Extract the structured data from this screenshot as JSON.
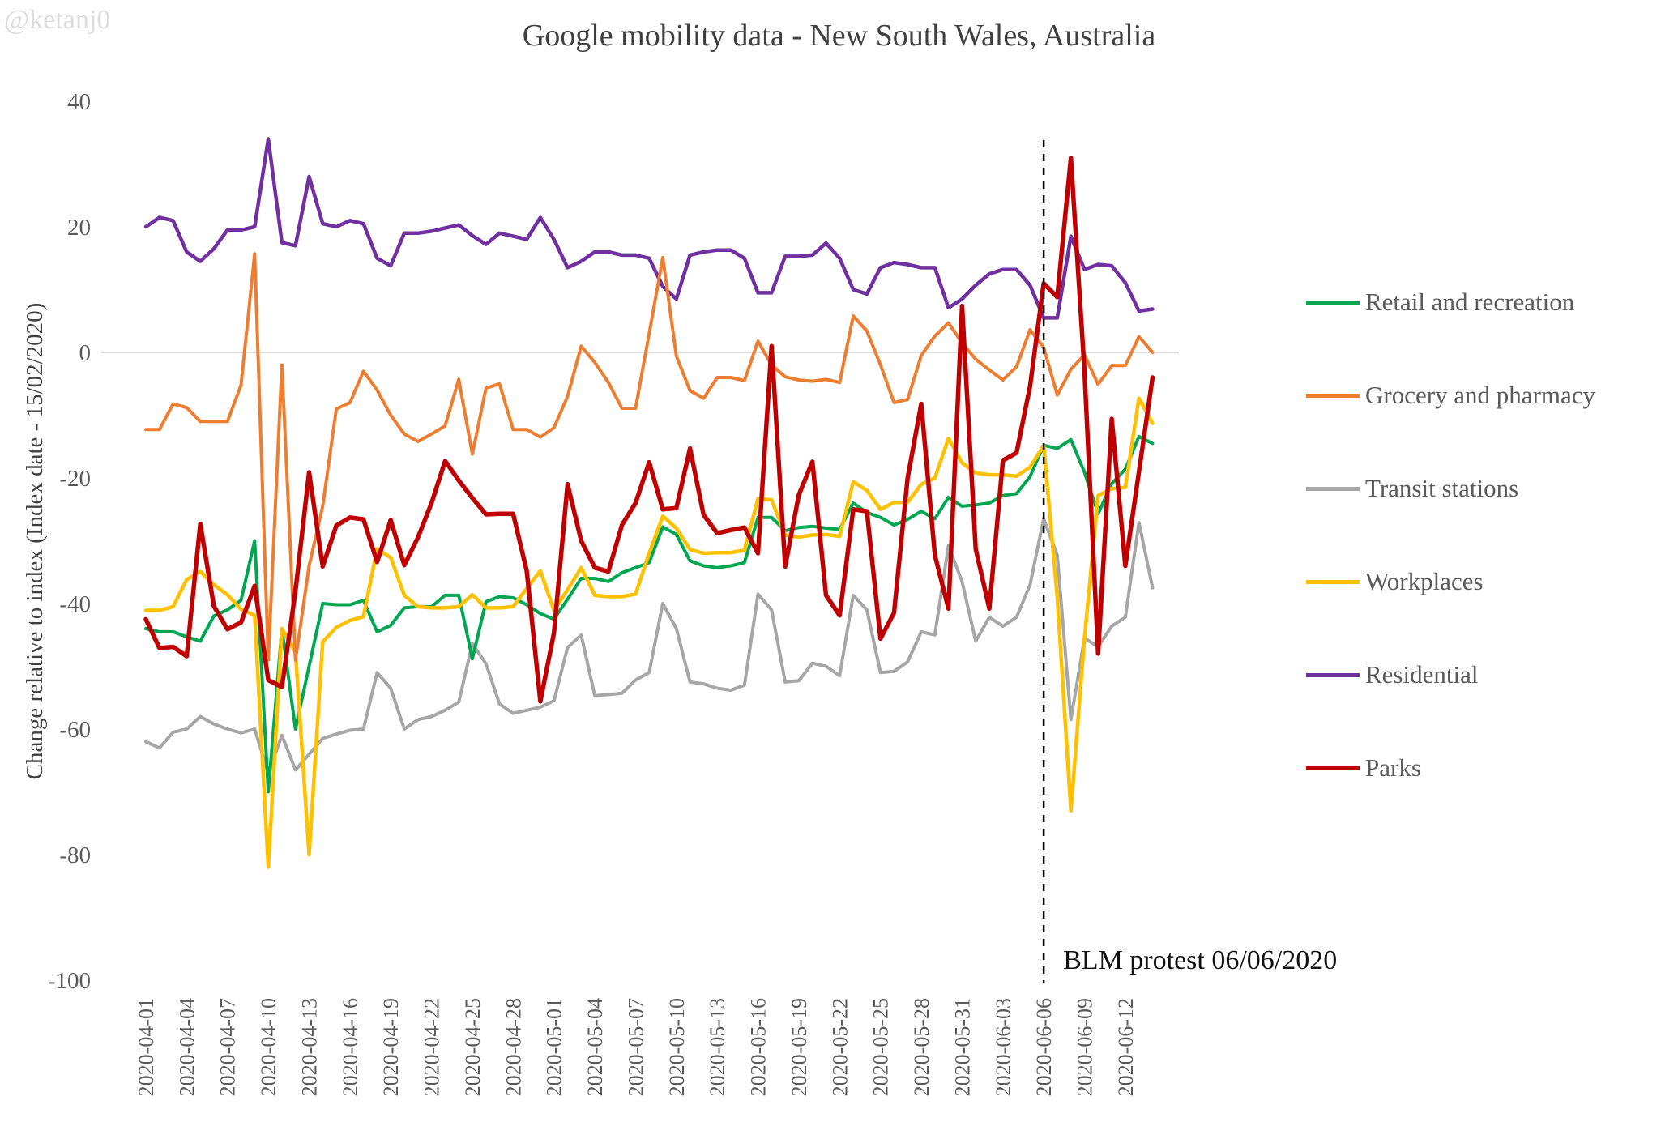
{
  "watermark": "@ketanj0",
  "y_axis": {
    "title": "Change relative to index (Index date - 15/02/2020)"
  },
  "annotation": {
    "text": "BLM protest 06/06/2020",
    "day_index": 66,
    "date": "2020-06-06"
  },
  "chart_data": {
    "type": "line",
    "title": "Google mobility data - New South Wales, Australia",
    "xlabel": "",
    "ylabel": "Change relative to index (Index date - 15/02/2020)",
    "ylim": [
      -100,
      40
    ],
    "y_ticks": [
      40,
      20,
      0,
      -20,
      -40,
      -60,
      -80,
      -100
    ],
    "gridline_color": "#d9d9d9",
    "legend_position": "right",
    "x_tick_every_days": 3,
    "dates": [
      "2020-04-01",
      "2020-04-02",
      "2020-04-03",
      "2020-04-04",
      "2020-04-05",
      "2020-04-06",
      "2020-04-07",
      "2020-04-08",
      "2020-04-09",
      "2020-04-10",
      "2020-04-11",
      "2020-04-12",
      "2020-04-13",
      "2020-04-14",
      "2020-04-15",
      "2020-04-16",
      "2020-04-17",
      "2020-04-18",
      "2020-04-19",
      "2020-04-20",
      "2020-04-21",
      "2020-04-22",
      "2020-04-23",
      "2020-04-24",
      "2020-04-25",
      "2020-04-26",
      "2020-04-27",
      "2020-04-28",
      "2020-04-29",
      "2020-04-30",
      "2020-05-01",
      "2020-05-02",
      "2020-05-03",
      "2020-05-04",
      "2020-05-05",
      "2020-05-06",
      "2020-05-07",
      "2020-05-08",
      "2020-05-09",
      "2020-05-10",
      "2020-05-11",
      "2020-05-12",
      "2020-05-13",
      "2020-05-14",
      "2020-05-15",
      "2020-05-16",
      "2020-05-17",
      "2020-05-18",
      "2020-05-19",
      "2020-05-20",
      "2020-05-21",
      "2020-05-22",
      "2020-05-23",
      "2020-05-24",
      "2020-05-25",
      "2020-05-26",
      "2020-05-27",
      "2020-05-28",
      "2020-05-29",
      "2020-05-30",
      "2020-05-31",
      "2020-06-01",
      "2020-06-02",
      "2020-06-03",
      "2020-06-04",
      "2020-06-05",
      "2020-06-06",
      "2020-06-07",
      "2020-06-08",
      "2020-06-09",
      "2020-06-10",
      "2020-06-11",
      "2020-06-12",
      "2020-06-13",
      "2020-06-14"
    ],
    "draw_order": [
      2,
      0,
      3,
      4,
      1,
      5
    ],
    "series": [
      {
        "name": "Retail and recreation",
        "color": "#00A651",
        "width": 4,
        "values": [
          -44,
          -44.5,
          -44.5,
          -45.3,
          -46,
          -42,
          -41,
          -39.5,
          -30,
          -70,
          -44,
          -60,
          -50,
          -40,
          -40.2,
          -40.2,
          -39.5,
          -44.5,
          -43.5,
          -40.7,
          -40.5,
          -40.5,
          -38.7,
          -38.7,
          -48.8,
          -39.7,
          -38.9,
          -39.1,
          -40.2,
          -41.6,
          -42.5,
          -39.3,
          -36,
          -36,
          -36.5,
          -35.1,
          -34.3,
          -33.5,
          -27.8,
          -29,
          -33.2,
          -34,
          -34.3,
          -34,
          -33.5,
          -26.3,
          -26.3,
          -28.4,
          -27.9,
          -27.7,
          -28,
          -28.2,
          -24,
          -25.5,
          -26.3,
          -27.5,
          -26.6,
          -25.3,
          -26.5,
          -23.1,
          -24.5,
          -24.3,
          -24,
          -22.8,
          -22.5,
          -19.8,
          -14.8,
          -15.3,
          -13.9,
          -19.1,
          -25.7,
          -20.9,
          -18.6,
          -13.4,
          -14.5
        ]
      },
      {
        "name": "Grocery and pharmacy",
        "color": "#ED7D31",
        "width": 4,
        "values": [
          -12.3,
          -12.3,
          -8.2,
          -8.8,
          -11,
          -11,
          -11,
          -5.2,
          15.7,
          -49,
          -2,
          -49,
          -34,
          -24.5,
          -9,
          -8,
          -3,
          -6,
          -10,
          -13,
          -14.2,
          -13,
          -11.7,
          -4.3,
          -16.2,
          -5.7,
          -5,
          -12.3,
          -12.3,
          -13.5,
          -12,
          -7,
          1,
          -1.6,
          -4.8,
          -8.9,
          -8.9,
          3,
          15.1,
          -0.6,
          -6.1,
          -7.3,
          -4,
          -4,
          -4.5,
          1.8,
          -2,
          -3.9,
          -4.4,
          -4.6,
          -4.3,
          -4.8,
          5.8,
          3.4,
          -2,
          -8,
          -7.5,
          -0.5,
          2.6,
          4.7,
          1.5,
          -1.1,
          -2.8,
          -4.4,
          -2.3,
          3.6,
          0.8,
          -6.8,
          -2.7,
          -0.4,
          -5.1,
          -2.1,
          -2.1,
          2.5,
          0
        ]
      },
      {
        "name": "Transit stations",
        "color": "#A6A6A6",
        "width": 4,
        "values": [
          -62,
          -63,
          -60.5,
          -60,
          -58,
          -59.2,
          -60,
          -60.6,
          -60,
          -67,
          -61,
          -66.5,
          -64,
          -61.5,
          -60.8,
          -60.2,
          -60,
          -51,
          -53.5,
          -60,
          -58.5,
          -58,
          -57,
          -55.7,
          -46.4,
          -49.6,
          -56,
          -57.5,
          -57,
          -56.5,
          -55.5,
          -47,
          -45,
          -54.7,
          -54.5,
          -54.3,
          -52.2,
          -51,
          -40,
          -44,
          -52.5,
          -52.8,
          -53.5,
          -53.8,
          -53,
          -38.5,
          -41,
          -52.5,
          -52.3,
          -49.5,
          -50,
          -51.5,
          -38.7,
          -41,
          -51,
          -50.8,
          -49.3,
          -44.5,
          -45,
          -30.8,
          -36.5,
          -46,
          -42.2,
          -43.6,
          -42.2,
          -37,
          -26.5,
          -32.3,
          -58.5,
          -45.5,
          -46.9,
          -43.6,
          -42.2,
          -27.1,
          -37.5
        ]
      },
      {
        "name": "Workplaces",
        "color": "#FFC000",
        "width": 4.5,
        "values": [
          -41.1,
          -41.1,
          -40.5,
          -36.2,
          -34.9,
          -37,
          -38.6,
          -40.9,
          -41.9,
          -82,
          -44,
          -47.8,
          -80,
          -46.1,
          -43.8,
          -42.7,
          -42.1,
          -31.3,
          -32.7,
          -38.7,
          -40.5,
          -40.7,
          -40.7,
          -40.5,
          -38.6,
          -40.7,
          -40.7,
          -40.5,
          -37.6,
          -34.8,
          -41.1,
          -37.8,
          -34.3,
          -38.7,
          -38.9,
          -38.9,
          -38.5,
          -32,
          -26.1,
          -28,
          -31.4,
          -32,
          -31.9,
          -31.9,
          -31.5,
          -23.3,
          -23.5,
          -29.1,
          -29.4,
          -29.1,
          -29,
          -29.3,
          -20.6,
          -22,
          -25,
          -23.9,
          -23.9,
          -21,
          -20,
          -13.7,
          -17.6,
          -19.2,
          -19.5,
          -19.5,
          -19.7,
          -18.3,
          -14.8,
          -39,
          -73,
          -45.5,
          -22.8,
          -21.7,
          -21.5,
          -7.3,
          -11.3
        ]
      },
      {
        "name": "Residential",
        "color": "#7030A0",
        "width": 4.5,
        "values": [
          20,
          21.5,
          21,
          16,
          14.5,
          16.5,
          19.5,
          19.5,
          20,
          34,
          17.5,
          17,
          28,
          20.5,
          20,
          21,
          20.5,
          15,
          13.8,
          19,
          19,
          19.3,
          19.8,
          20.3,
          18.6,
          17.2,
          19,
          18.5,
          18,
          21.5,
          18,
          13.5,
          14.5,
          16,
          16,
          15.5,
          15.5,
          15,
          10.5,
          8.5,
          15.5,
          16,
          16.3,
          16.3,
          15,
          9.5,
          9.5,
          15.3,
          15.3,
          15.5,
          17.4,
          15,
          10,
          9.3,
          13.5,
          14.3,
          14,
          13.5,
          13.5,
          7.1,
          8.5,
          10.7,
          12.5,
          13.2,
          13.2,
          10.7,
          5.5,
          5.5,
          18.5,
          13.2,
          14,
          13.8,
          11.1,
          6.6,
          6.9
        ]
      },
      {
        "name": "Parks",
        "color": "#C00000",
        "width": 5.5,
        "values": [
          -42.5,
          -47.1,
          -46.9,
          -48.4,
          -27.3,
          -40.4,
          -44.1,
          -43,
          -37.2,
          -52.2,
          -53.3,
          -38,
          -19.1,
          -34.1,
          -27.6,
          -26.3,
          -26.6,
          -33.4,
          -26.7,
          -33.9,
          -29.5,
          -24,
          -17.3,
          -20.4,
          -23.2,
          -25.8,
          -25.7,
          -25.7,
          -34.8,
          -55.6,
          -44.7,
          -21,
          -30,
          -34.3,
          -34.9,
          -27.5,
          -24,
          -17.5,
          -25,
          -24.8,
          -15.3,
          -25.9,
          -28.8,
          -28.3,
          -27.9,
          -32,
          1,
          -34.1,
          -22.7,
          -17.4,
          -38.7,
          -41.9,
          -25,
          -25.3,
          -45.6,
          -41.5,
          -20,
          -8.2,
          -32.3,
          -40.8,
          7.4,
          -31.3,
          -40.8,
          -17.2,
          -16,
          -5.4,
          11,
          8.8,
          31,
          -3,
          -48,
          -10.6,
          -34,
          -19,
          -4
        ]
      }
    ]
  }
}
